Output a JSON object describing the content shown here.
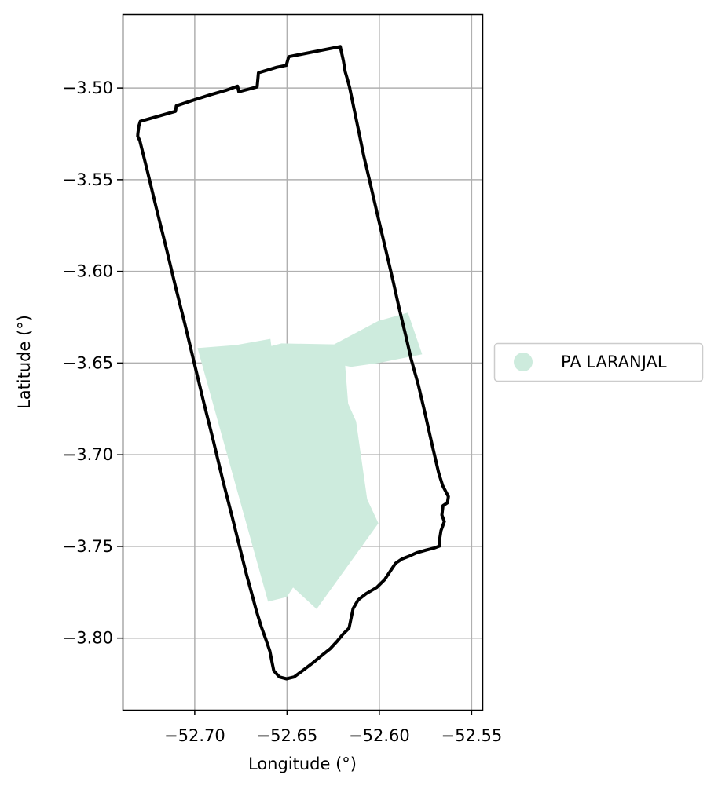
{
  "chart_data": {
    "type": "map",
    "xlabel": "Longitude (°)",
    "ylabel": "Latitude (°)",
    "xlim": [
      -52.7391,
      -52.5442
    ],
    "ylim": [
      -3.8391,
      -3.4597
    ],
    "xticks": [
      -52.7,
      -52.65,
      -52.6,
      -52.55
    ],
    "xtick_labels": [
      "−52.70",
      "−52.65",
      "−52.60",
      "−52.55"
    ],
    "yticks": [
      -3.5,
      -3.55,
      -3.6,
      -3.65,
      -3.7,
      -3.75,
      -3.8
    ],
    "ytick_labels": [
      "−3.50",
      "−3.55",
      "−3.60",
      "−3.65",
      "−3.70",
      "−3.75",
      "−3.80"
    ],
    "grid": true,
    "legend": {
      "placement": "right",
      "entries": [
        {
          "label": "PA LARANJAL",
          "color": "#cdebdd"
        }
      ]
    },
    "boundary": {
      "color": "#000000",
      "coordinates": [
        [
          -52.6212,
          -3.4774
        ],
        [
          -52.6195,
          -3.4851
        ],
        [
          -52.6185,
          -3.4911
        ],
        [
          -52.617,
          -3.4962
        ],
        [
          -52.6161,
          -3.4996
        ],
        [
          -52.6135,
          -3.5124
        ],
        [
          -52.611,
          -3.5243
        ],
        [
          -52.6084,
          -3.5371
        ],
        [
          -52.605,
          -3.5516
        ],
        [
          -52.6008,
          -3.57
        ],
        [
          -52.5966,
          -3.5879
        ],
        [
          -52.5924,
          -3.6058
        ],
        [
          -52.589,
          -3.6212
        ],
        [
          -52.5855,
          -3.6357
        ],
        [
          -52.5826,
          -3.6485
        ],
        [
          -52.5788,
          -3.6622
        ],
        [
          -52.5754,
          -3.6767
        ],
        [
          -52.5712,
          -3.6955
        ],
        [
          -52.5678,
          -3.71
        ],
        [
          -52.5657,
          -3.7168
        ],
        [
          -52.5626,
          -3.7228
        ],
        [
          -52.5631,
          -3.7262
        ],
        [
          -52.5655,
          -3.7278
        ],
        [
          -52.5661,
          -3.7329
        ],
        [
          -52.5648,
          -3.7364
        ],
        [
          -52.5657,
          -3.739
        ],
        [
          -52.5666,
          -3.7414
        ],
        [
          -52.5672,
          -3.7452
        ],
        [
          -52.5672,
          -3.7497
        ],
        [
          -52.5703,
          -3.7509
        ],
        [
          -52.5746,
          -3.752
        ],
        [
          -52.5798,
          -3.7535
        ],
        [
          -52.5836,
          -3.7552
        ],
        [
          -52.5878,
          -3.7569
        ],
        [
          -52.5912,
          -3.7592
        ],
        [
          -52.5937,
          -3.7629
        ],
        [
          -52.5971,
          -3.7681
        ],
        [
          -52.6014,
          -3.7724
        ],
        [
          -52.6072,
          -3.7758
        ],
        [
          -52.6115,
          -3.7792
        ],
        [
          -52.6142,
          -3.7839
        ],
        [
          -52.6164,
          -3.7946
        ],
        [
          -52.6198,
          -3.798
        ],
        [
          -52.6226,
          -3.8014
        ],
        [
          -52.6266,
          -3.8058
        ],
        [
          -52.6309,
          -3.8092
        ],
        [
          -52.636,
          -3.8135
        ],
        [
          -52.6411,
          -3.8174
        ],
        [
          -52.6462,
          -3.8212
        ],
        [
          -52.6503,
          -3.8222
        ],
        [
          -52.6541,
          -3.8212
        ],
        [
          -52.6572,
          -3.8178
        ],
        [
          -52.658,
          -3.8139
        ],
        [
          -52.6593,
          -3.8071
        ],
        [
          -52.6615,
          -3.8007
        ],
        [
          -52.664,
          -3.7937
        ],
        [
          -52.6666,
          -3.7852
        ],
        [
          -52.6691,
          -3.7758
        ],
        [
          -52.6721,
          -3.7647
        ],
        [
          -52.6755,
          -3.7511
        ],
        [
          -52.6797,
          -3.734
        ],
        [
          -52.6849,
          -3.7135
        ],
        [
          -52.69,
          -3.6921
        ],
        [
          -52.6951,
          -3.6716
        ],
        [
          -52.7002,
          -3.6502
        ],
        [
          -52.7053,
          -3.6288
        ],
        [
          -52.7104,
          -3.6083
        ],
        [
          -52.7155,
          -3.587
        ],
        [
          -52.7206,
          -3.5664
        ],
        [
          -52.7257,
          -3.5451
        ],
        [
          -52.7297,
          -3.5289
        ],
        [
          -52.7309,
          -3.5263
        ],
        [
          -52.7308,
          -3.5249
        ],
        [
          -52.7303,
          -3.5208
        ],
        [
          -52.7295,
          -3.5182
        ],
        [
          -52.7104,
          -3.5127
        ],
        [
          -52.71,
          -3.5097
        ],
        [
          -52.7011,
          -3.5067
        ],
        [
          -52.6917,
          -3.5037
        ],
        [
          -52.6832,
          -3.5013
        ],
        [
          -52.6768,
          -3.499
        ],
        [
          -52.6761,
          -3.502
        ],
        [
          -52.6662,
          -3.4994
        ],
        [
          -52.6655,
          -3.4917
        ],
        [
          -52.6556,
          -3.4887
        ],
        [
          -52.6504,
          -3.4876
        ],
        [
          -52.6491,
          -3.4829
        ],
        [
          -52.6212,
          -3.4774
        ]
      ]
    },
    "areas": [
      {
        "name": "PA LARANJAL",
        "color": "#cdebdd",
        "coordinates": [
          [
            -52.6985,
            -3.6418
          ],
          [
            -52.6777,
            -3.6402
          ],
          [
            -52.659,
            -3.6368
          ],
          [
            -52.6585,
            -3.6407
          ],
          [
            -52.653,
            -3.6393
          ],
          [
            -52.6245,
            -3.6398
          ],
          [
            -52.6005,
            -3.627
          ],
          [
            -52.5845,
            -3.6225
          ],
          [
            -52.5768,
            -3.6452
          ],
          [
            -52.6004,
            -3.65
          ],
          [
            -52.6154,
            -3.6521
          ],
          [
            -52.6185,
            -3.6514
          ],
          [
            -52.6169,
            -3.6722
          ],
          [
            -52.6126,
            -3.6818
          ],
          [
            -52.6066,
            -3.7243
          ],
          [
            -52.6005,
            -3.7374
          ],
          [
            -52.634,
            -3.7842
          ],
          [
            -52.6467,
            -3.7724
          ],
          [
            -52.6501,
            -3.7776
          ],
          [
            -52.6603,
            -3.7801
          ],
          [
            -52.6985,
            -3.6418
          ]
        ]
      }
    ]
  }
}
